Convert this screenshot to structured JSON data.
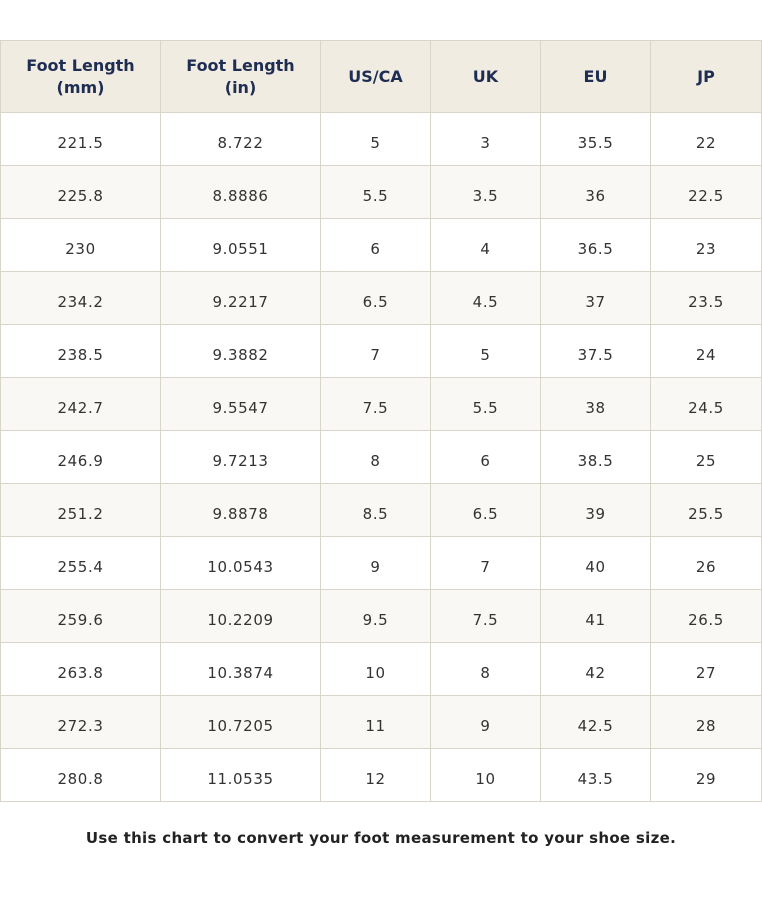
{
  "table": {
    "header": [
      "Foot Length (mm)",
      "Foot Length (in)",
      "US/CA",
      "UK",
      "EU",
      "JP"
    ],
    "rows": [
      [
        "221.5",
        "8.722",
        "5",
        "3",
        "35.5",
        "22"
      ],
      [
        "225.8",
        "8.8886",
        "5.5",
        "3.5",
        "36",
        "22.5"
      ],
      [
        "230",
        "9.0551",
        "6",
        "4",
        "36.5",
        "23"
      ],
      [
        "234.2",
        "9.2217",
        "6.5",
        "4.5",
        "37",
        "23.5"
      ],
      [
        "238.5",
        "9.3882",
        "7",
        "5",
        "37.5",
        "24"
      ],
      [
        "242.7",
        "9.5547",
        "7.5",
        "5.5",
        "38",
        "24.5"
      ],
      [
        "246.9",
        "9.7213",
        "8",
        "6",
        "38.5",
        "25"
      ],
      [
        "251.2",
        "9.8878",
        "8.5",
        "6.5",
        "39",
        "25.5"
      ],
      [
        "255.4",
        "10.0543",
        "9",
        "7",
        "40",
        "26"
      ],
      [
        "259.6",
        "10.2209",
        "9.5",
        "7.5",
        "41",
        "26.5"
      ],
      [
        "263.8",
        "10.3874",
        "10",
        "8",
        "42",
        "27"
      ],
      [
        "272.3",
        "10.7205",
        "11",
        "9",
        "42.5",
        "28"
      ],
      [
        "280.8",
        "11.0535",
        "12",
        "10",
        "43.5",
        "29"
      ]
    ]
  },
  "caption": "Use this chart to convert your foot measurement to your shoe size."
}
